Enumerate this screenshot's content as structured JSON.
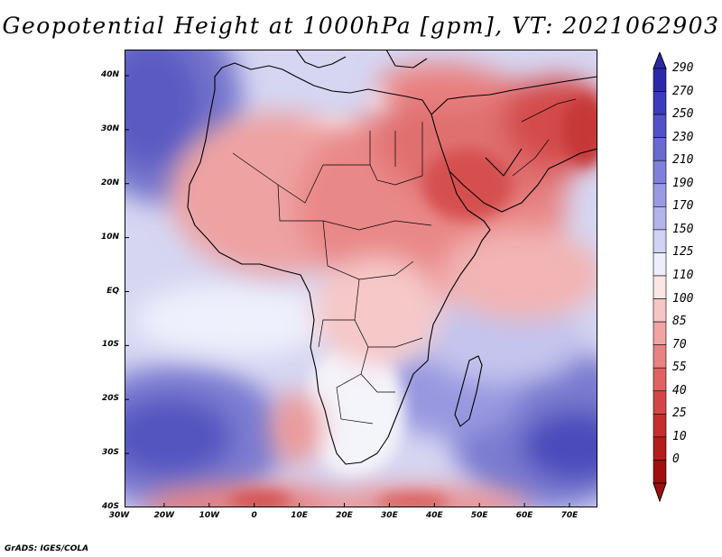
{
  "title": "Geopotential Height at 1000hPa [gpm], VT: 2021062903",
  "credit": "GrADS: IGES/COLA",
  "map": {
    "lon_range": [
      -30,
      75
    ],
    "lat_range": [
      -40,
      45
    ],
    "y_ticks": [
      "40N",
      "30N",
      "20N",
      "10N",
      "EQ",
      "10S",
      "20S",
      "30S",
      "40S"
    ],
    "x_ticks": [
      "30W",
      "20W",
      "10W",
      "0",
      "10E",
      "20E",
      "30E",
      "40E",
      "50E",
      "60E",
      "70E"
    ]
  },
  "colorbar": {
    "labels": [
      "290",
      "270",
      "250",
      "230",
      "210",
      "190",
      "170",
      "150",
      "125",
      "110",
      "100",
      "85",
      "70",
      "55",
      "40",
      "25",
      "10",
      "0"
    ],
    "colors": {
      "high": [
        "#2a2aa8",
        "#3b3bbb",
        "#5252c8",
        "#6a6ad2",
        "#8080dc",
        "#9a9ae4",
        "#b4b4ec",
        "#d2d2f4",
        "#eceefc"
      ],
      "low": [
        "#fbe6e6",
        "#f6c6c6",
        "#f0a4a4",
        "#e98282",
        "#e06262",
        "#d44646",
        "#c52e2e",
        "#b51c1c",
        "#a00e0e"
      ]
    }
  }
}
